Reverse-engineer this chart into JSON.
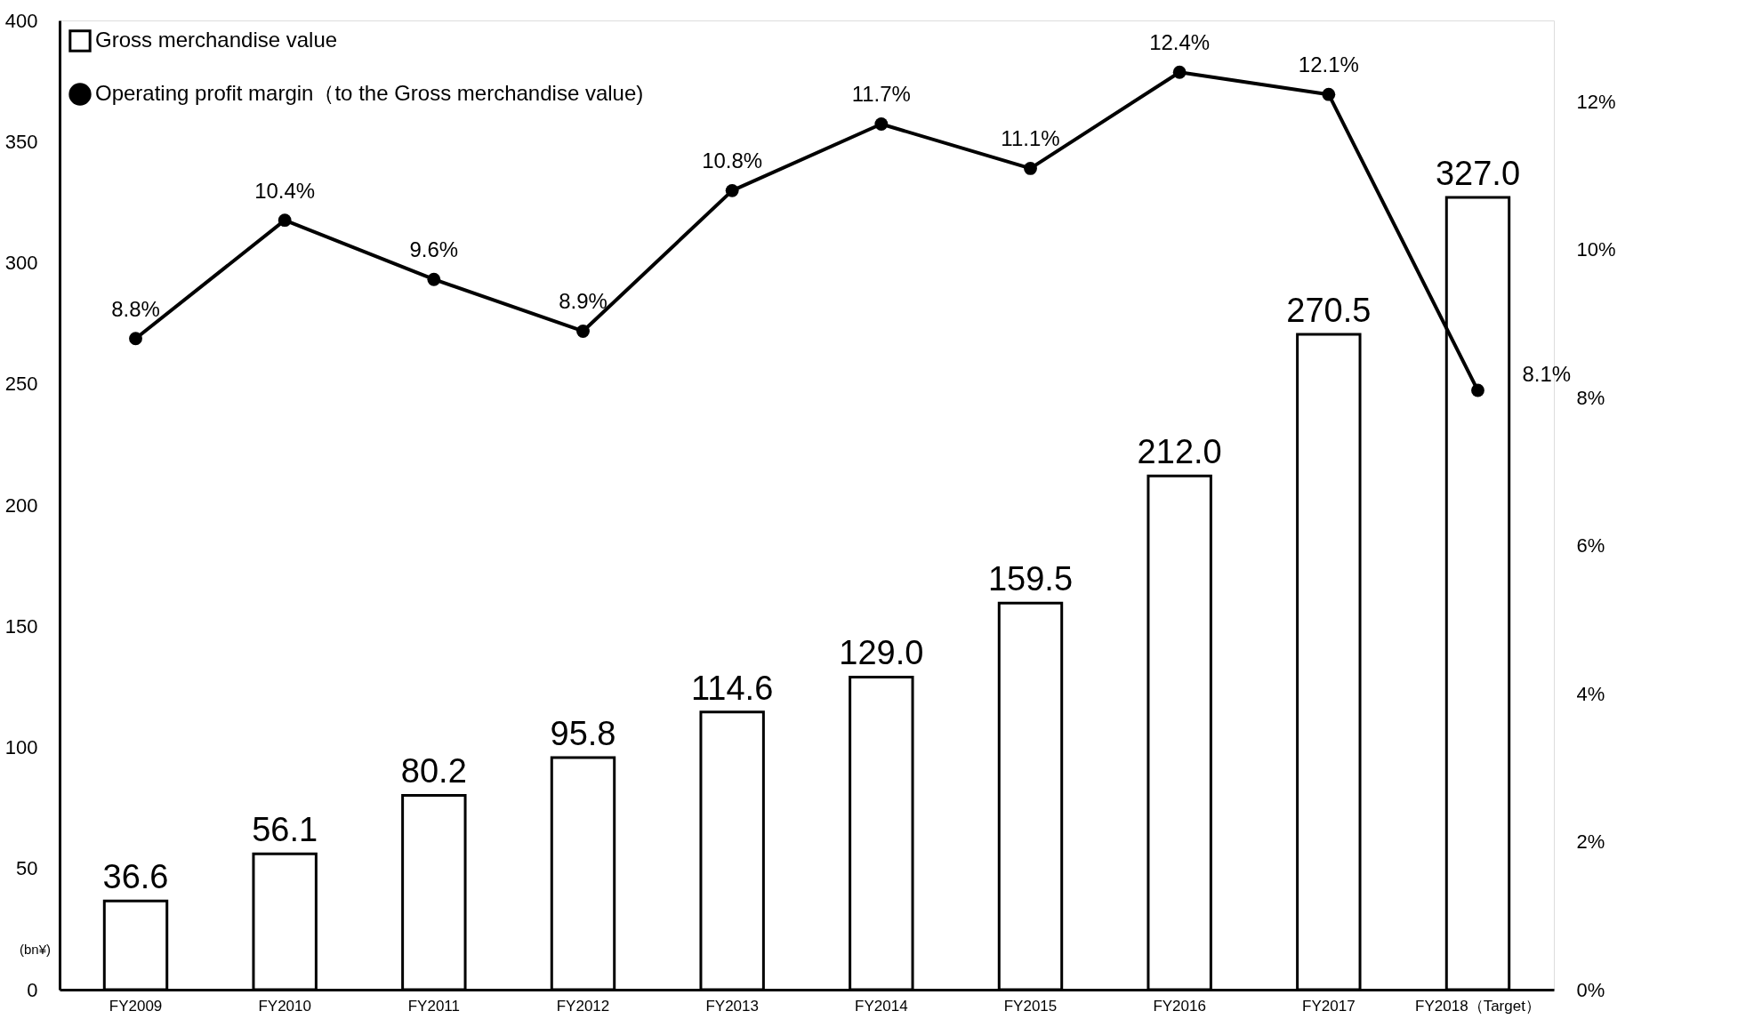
{
  "chart_data": {
    "type": "bar",
    "ylabel": "(bn¥)",
    "legend": "top left",
    "categories": [
      "FY2009",
      "FY2010",
      "FY2011",
      "FY2012",
      "FY2013",
      "FY2014",
      "FY2015",
      "FY2016",
      "FY2017",
      "FY2018（Target）"
    ],
    "series": [
      {
        "name": "Gross merchandise value",
        "color": "#ffffff",
        "values": [
          36.6,
          56.1,
          80.2,
          95.8,
          114.6,
          129.0,
          159.5,
          212.0,
          270.5,
          327.0
        ],
        "value_labels": [
          "36.6",
          "56.1",
          "80.2",
          "95.8",
          "114.6",
          "129.0",
          "159.5",
          "212.0",
          "270.5",
          "327.0"
        ]
      },
      {
        "name": "Operating profit margin（to the Gross merchandise value)",
        "type": "line",
        "axis": "y2",
        "color": "#000000",
        "marker": "circle",
        "values": [
          8.8,
          10.4,
          9.6,
          8.9,
          10.8,
          11.7,
          11.1,
          12.4,
          12.1,
          8.1
        ],
        "value_labels": [
          "8.8%",
          "10.4%",
          "9.6%",
          "8.9%",
          "10.8%",
          "11.7%",
          "11.1%",
          "12.4%",
          "12.1%",
          "8.1%"
        ]
      }
    ],
    "ylim": [
      0,
      400
    ],
    "yticks": [
      0,
      50,
      100,
      150,
      200,
      250,
      300,
      350,
      400
    ],
    "y2lim": [
      0,
      13.1
    ],
    "y2ticks": [
      {
        "value": 0,
        "label": "0%"
      },
      {
        "value": 2,
        "label": "2%"
      },
      {
        "value": 4,
        "label": "4%"
      },
      {
        "value": 6,
        "label": "6%"
      },
      {
        "value": 8,
        "label": "8%"
      },
      {
        "value": 10,
        "label": "10%"
      },
      {
        "value": 12,
        "label": "12%"
      }
    ],
    "grid": false
  }
}
